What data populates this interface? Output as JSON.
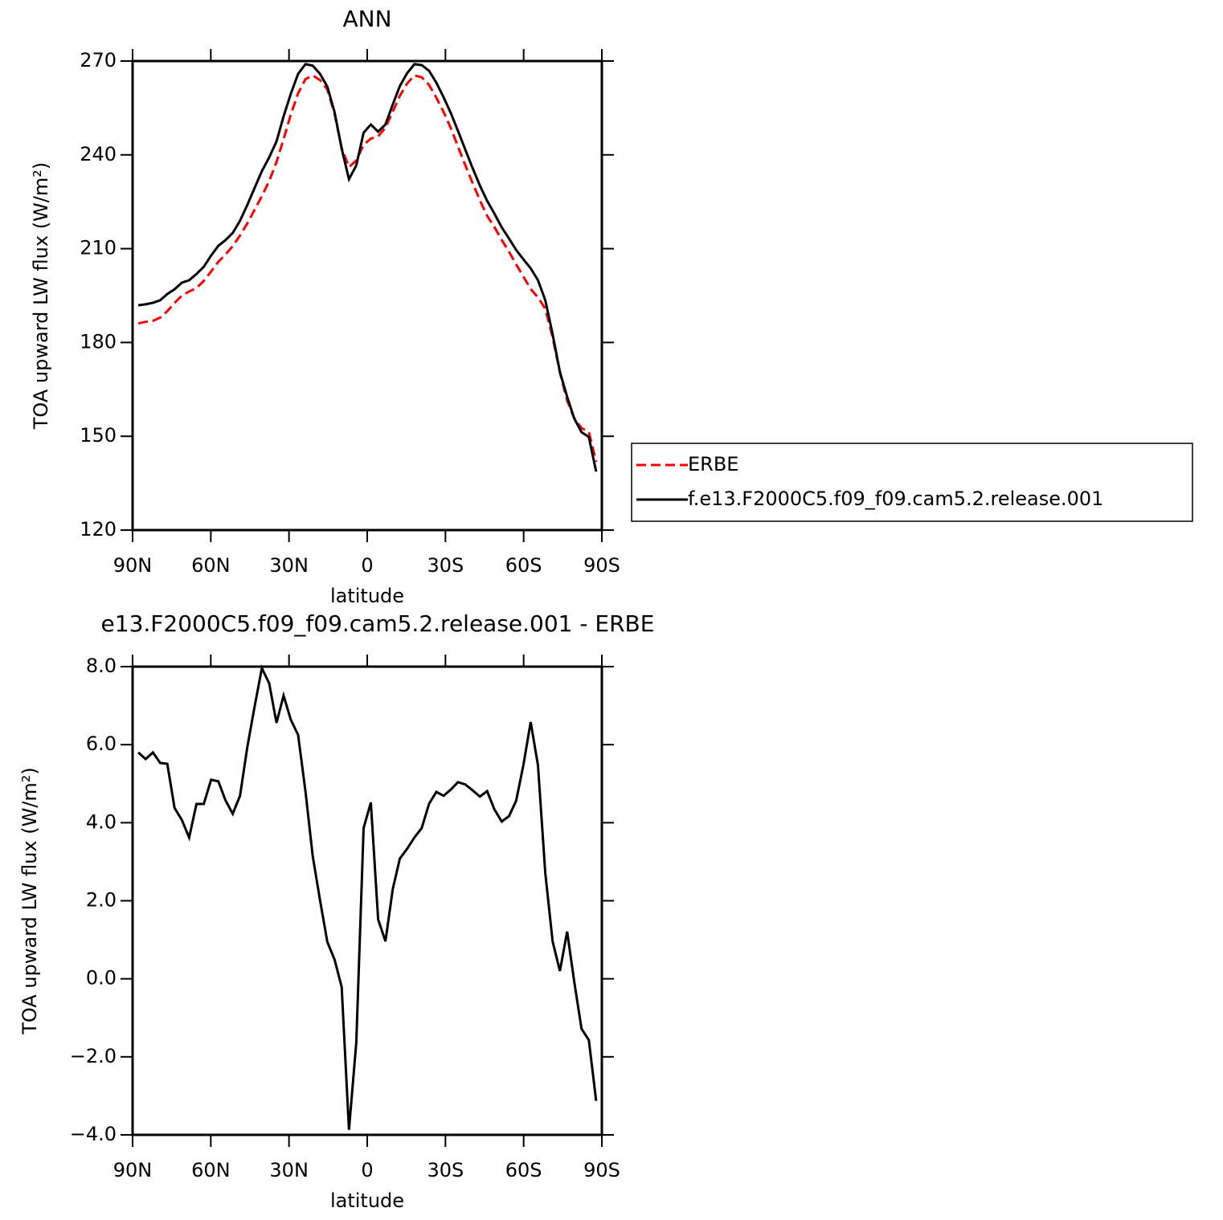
{
  "chart_data": [
    {
      "type": "line",
      "title": "ANN",
      "x_label": "latitude",
      "y_label": "TOA upward LW flux (W/m²)",
      "x": [
        87.8,
        85.0,
        82.2,
        79.4,
        76.7,
        73.9,
        71.1,
        68.3,
        65.5,
        62.7,
        59.9,
        57.1,
        54.4,
        51.6,
        48.8,
        46.0,
        43.2,
        40.4,
        37.6,
        34.8,
        32.1,
        29.3,
        26.5,
        23.7,
        20.9,
        18.1,
        15.3,
        12.5,
        9.8,
        7.0,
        4.2,
        1.4,
        -1.4,
        -4.2,
        -7.0,
        -9.8,
        -12.5,
        -15.3,
        -18.1,
        -20.9,
        -23.7,
        -26.5,
        -29.3,
        -32.1,
        -34.8,
        -37.6,
        -40.4,
        -43.2,
        -46.0,
        -48.8,
        -51.6,
        -54.4,
        -57.1,
        -59.9,
        -62.7,
        -65.5,
        -68.3,
        -71.1,
        -73.9,
        -76.7,
        -79.4,
        -82.2,
        -85.0,
        -87.8
      ],
      "series": [
        {
          "name": "ERBE",
          "color": "#ff0000",
          "line_style": "dashed",
          "values": [
            186.1,
            186.6,
            186.9,
            188.0,
            190.0,
            192.6,
            195.0,
            196.3,
            197.4,
            199.7,
            202.7,
            205.8,
            208.1,
            210.8,
            214.2,
            218.1,
            222.4,
            226.8,
            231.6,
            237.7,
            245.0,
            252.9,
            259.7,
            264.2,
            265.4,
            263.9,
            260.9,
            253.1,
            242.2,
            236.1,
            238.2,
            243.2,
            245.2,
            245.9,
            248.7,
            253.8,
            258.9,
            262.8,
            265.4,
            264.8,
            262.4,
            258.3,
            253.7,
            248.5,
            242.7,
            236.7,
            231.0,
            225.5,
            220.5,
            216.9,
            212.8,
            209.0,
            205.0,
            201.1,
            197.1,
            194.4,
            190.8,
            181.7,
            170.4,
            161.4,
            155.8,
            152.6,
            151.4,
            141.8
          ]
        },
        {
          "name": "f.e13.F2000C5.f09_f09.cam5.2.release.001",
          "color": "#000000",
          "line_style": "solid",
          "values": [
            191.9,
            192.2,
            192.7,
            193.5,
            195.5,
            197.0,
            199.1,
            199.9,
            201.9,
            204.2,
            207.8,
            210.9,
            212.7,
            215.0,
            218.9,
            224.0,
            229.4,
            234.8,
            239.2,
            244.3,
            252.3,
            259.5,
            265.9,
            269.0,
            268.5,
            265.9,
            261.8,
            253.6,
            242.0,
            232.2,
            236.6,
            247.1,
            249.7,
            247.4,
            249.7,
            256.1,
            262.0,
            266.1,
            269.0,
            268.7,
            266.9,
            263.1,
            258.4,
            253.3,
            247.7,
            241.7,
            235.8,
            230.2,
            225.3,
            221.2,
            216.8,
            213.2,
            209.6,
            206.6,
            203.7,
            199.9,
            193.5,
            182.7,
            170.6,
            162.6,
            155.7,
            151.3,
            149.8,
            138.7
          ]
        }
      ],
      "xlim": [
        90,
        -90
      ],
      "xticks": [
        {
          "value": 90,
          "label": "90N"
        },
        {
          "value": 60,
          "label": "60N"
        },
        {
          "value": 30,
          "label": "30N"
        },
        0,
        {
          "value": -30,
          "label": "30S"
        },
        {
          "value": -60,
          "label": "60S"
        },
        {
          "value": -90,
          "label": "90S"
        }
      ],
      "ylim": [
        120,
        270
      ],
      "yticks": [
        120,
        150,
        180,
        210,
        240,
        270
      ],
      "legend": "right",
      "grid": false
    },
    {
      "type": "line",
      "title": "e13.F2000C5.f09_f09.cam5.2.release.001 - ERBE",
      "x_label": "latitude",
      "y_label": "TOA upward LW flux (W/m²)",
      "x": [
        87.8,
        85.0,
        82.2,
        79.4,
        76.7,
        73.9,
        71.1,
        68.3,
        65.5,
        62.7,
        59.9,
        57.1,
        54.4,
        51.6,
        48.8,
        46.0,
        43.2,
        40.4,
        37.6,
        34.8,
        32.1,
        29.3,
        26.5,
        23.7,
        20.9,
        18.1,
        15.3,
        12.5,
        9.8,
        7.0,
        4.2,
        1.4,
        -1.4,
        -4.2,
        -7.0,
        -9.8,
        -12.5,
        -15.3,
        -18.1,
        -20.9,
        -23.7,
        -26.5,
        -29.3,
        -32.1,
        -34.8,
        -37.6,
        -40.4,
        -43.2,
        -46.0,
        -48.8,
        -51.6,
        -54.4,
        -57.1,
        -59.9,
        -62.7,
        -65.5,
        -68.3,
        -71.1,
        -73.9,
        -76.7,
        -79.4,
        -82.2,
        -85.0,
        -87.8
      ],
      "color": "#000000",
      "values": [
        5.8,
        5.63,
        5.8,
        5.53,
        5.51,
        4.38,
        4.07,
        3.62,
        4.48,
        4.48,
        5.1,
        5.06,
        4.58,
        4.23,
        4.69,
        5.94,
        6.97,
        7.96,
        7.57,
        6.56,
        7.26,
        6.64,
        6.25,
        4.81,
        3.14,
        2.01,
        0.94,
        0.49,
        -0.21,
        -3.87,
        -1.63,
        3.86,
        4.52,
        1.52,
        0.96,
        2.3,
        3.08,
        3.33,
        3.62,
        3.86,
        4.48,
        4.79,
        4.69,
        4.85,
        5.04,
        4.98,
        4.83,
        4.67,
        4.81,
        4.34,
        4.03,
        4.17,
        4.56,
        5.47,
        6.58,
        5.47,
        2.71,
        0.96,
        0.2,
        1.21,
        -0.07,
        -1.28,
        -1.57,
        -3.13
      ],
      "xlim": [
        90,
        -90
      ],
      "xticks": [
        {
          "value": 90,
          "label": "90N"
        },
        {
          "value": 60,
          "label": "60N"
        },
        {
          "value": 30,
          "label": "30N"
        },
        0,
        {
          "value": -30,
          "label": "30S"
        },
        {
          "value": -60,
          "label": "60S"
        },
        {
          "value": -90,
          "label": "90S"
        }
      ],
      "ylim": [
        -4,
        8
      ],
      "yticks": [
        {
          "value": -4,
          "label": "−4.0"
        },
        {
          "value": -2,
          "label": "−2.0"
        },
        {
          "value": 0,
          "label": "0.0"
        },
        {
          "value": 2,
          "label": "2.0"
        },
        {
          "value": 4,
          "label": "4.0"
        },
        {
          "value": 6,
          "label": "6.0"
        },
        {
          "value": 8,
          "label": "8.0"
        }
      ],
      "grid": false
    }
  ]
}
